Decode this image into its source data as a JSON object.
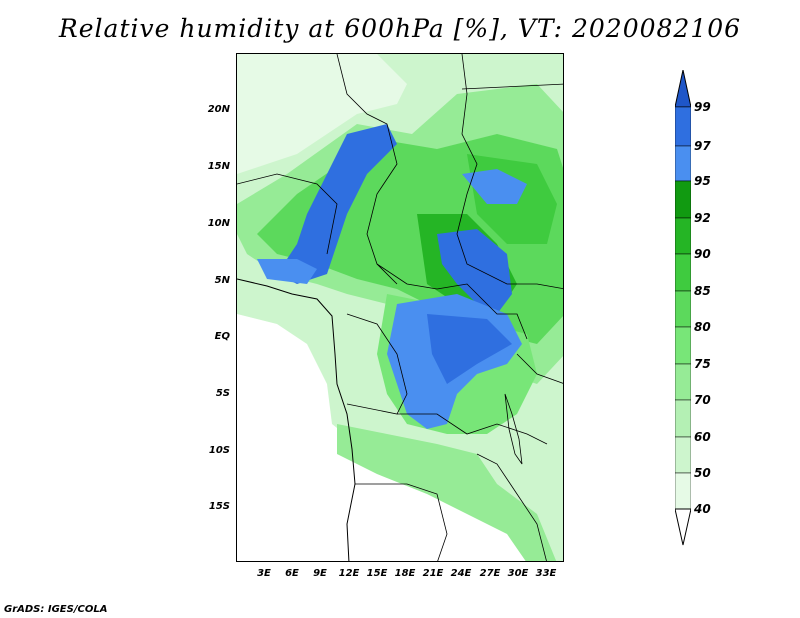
{
  "title": "Relative humidity at 600hPa [%], VT: 2020082106",
  "credit": "GrADS: IGES/COLA",
  "map": {
    "lon_labels": [
      "3E",
      "6E",
      "9E",
      "12E",
      "15E",
      "18E",
      "21E",
      "24E",
      "27E",
      "30E",
      "33E"
    ],
    "lat_labels": [
      "20N",
      "15N",
      "10N",
      "5N",
      "EQ",
      "5S",
      "10S",
      "15S"
    ]
  },
  "colorbar": {
    "levels": [
      "40",
      "50",
      "60",
      "70",
      "75",
      "80",
      "85",
      "90",
      "92",
      "95",
      "97",
      "99"
    ],
    "colors": [
      "#e6fae6",
      "#cdf5cd",
      "#b4f0b4",
      "#96eb96",
      "#78e678",
      "#5cd95c",
      "#3fcb3f",
      "#25b525",
      "#119a11",
      "#4a8ff0",
      "#2f6fe0",
      "#1f56c8"
    ],
    "below_color": "#ffffff",
    "above_color": "#1f56c8"
  }
}
